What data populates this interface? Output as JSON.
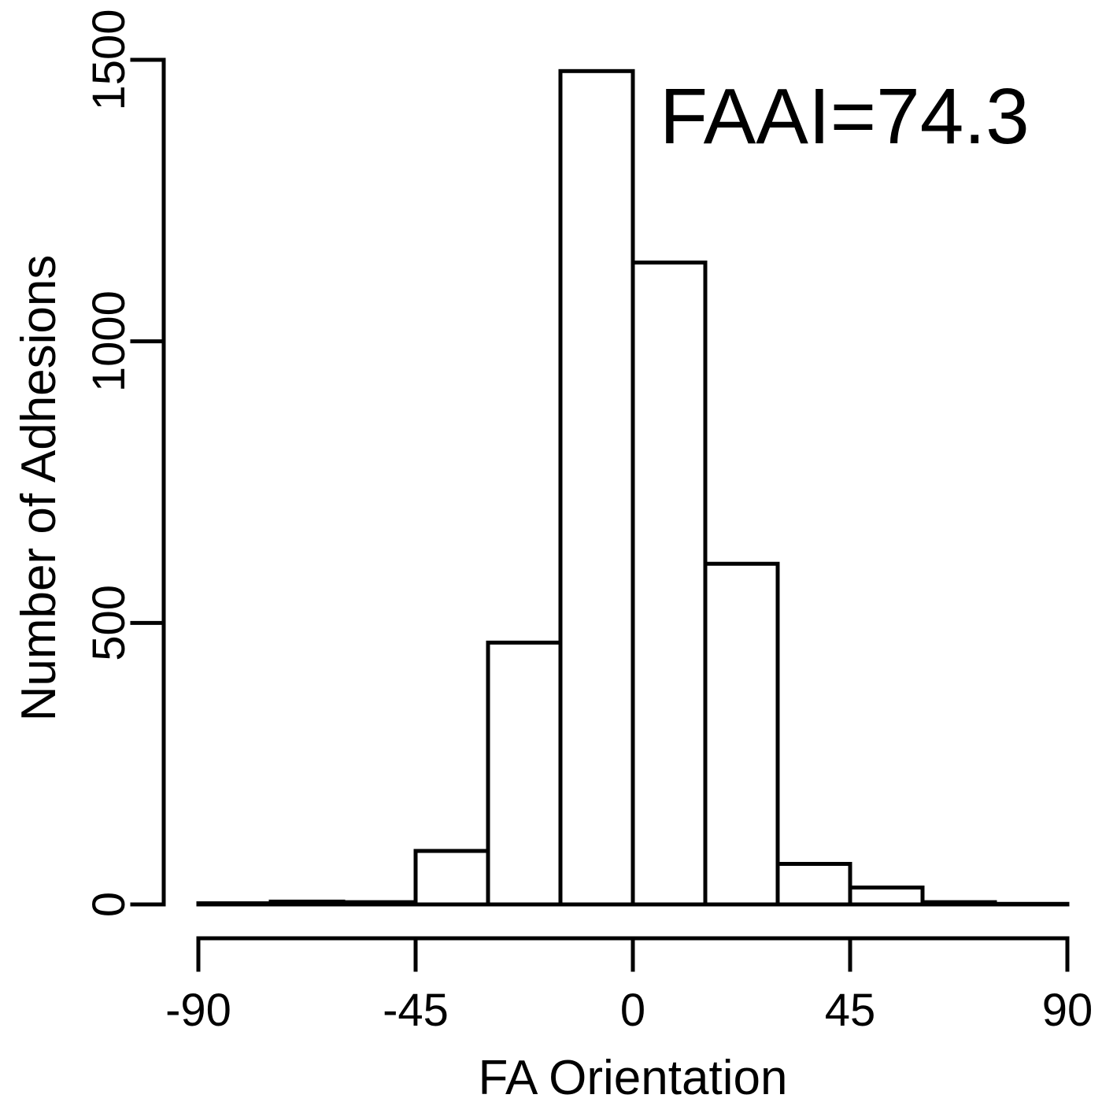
{
  "chart_data": {
    "type": "bar",
    "title": "",
    "xlabel": "FA Orientation",
    "ylabel": "Number of Adhesions",
    "annotation": "FAAI=74.3",
    "xlim": [
      -90,
      90
    ],
    "ylim": [
      0,
      1500
    ],
    "xticks": [
      -90,
      -45,
      0,
      45,
      90
    ],
    "yticks": [
      0,
      500,
      1000,
      1500
    ],
    "bins": [
      {
        "start": -90,
        "end": -75,
        "value": 2
      },
      {
        "start": -75,
        "end": -60,
        "value": 5
      },
      {
        "start": -60,
        "end": -45,
        "value": 4
      },
      {
        "start": -45,
        "end": -30,
        "value": 95
      },
      {
        "start": -30,
        "end": -15,
        "value": 465
      },
      {
        "start": -15,
        "end": 0,
        "value": 1480
      },
      {
        "start": 0,
        "end": 15,
        "value": 1140
      },
      {
        "start": 15,
        "end": 30,
        "value": 605
      },
      {
        "start": 30,
        "end": 45,
        "value": 72
      },
      {
        "start": 45,
        "end": 60,
        "value": 30
      },
      {
        "start": 60,
        "end": 75,
        "value": 4
      },
      {
        "start": 75,
        "end": 90,
        "value": 1
      }
    ],
    "grid": false,
    "legend": "none",
    "colors": {
      "bar_fill": "#ffffff",
      "bar_edge": "#000000"
    }
  }
}
